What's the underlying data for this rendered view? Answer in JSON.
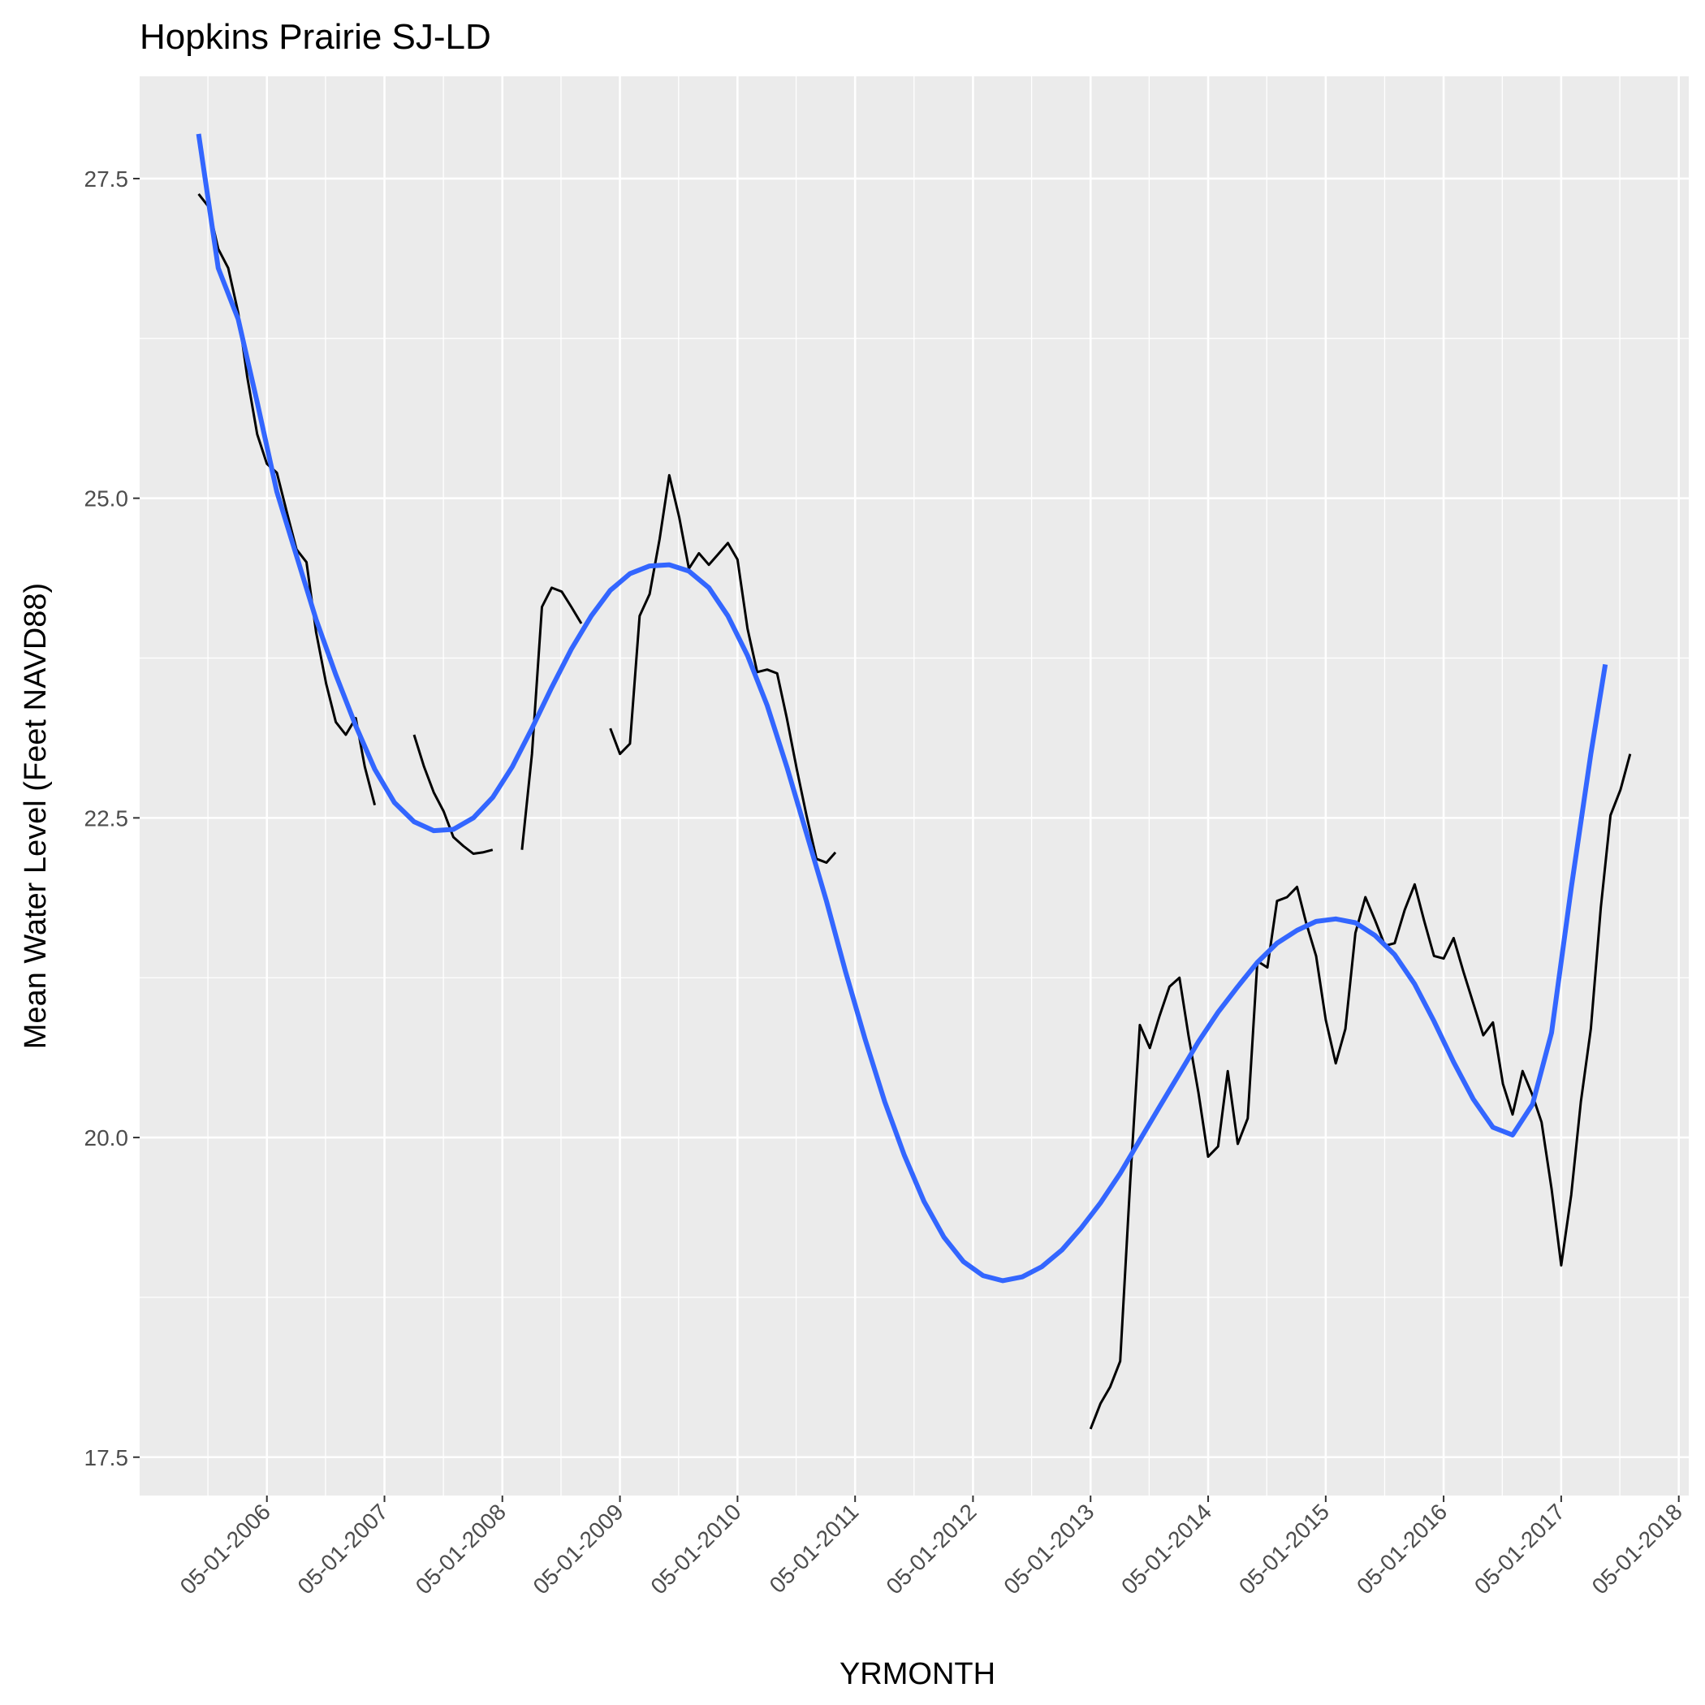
{
  "chart_data": {
    "type": "line",
    "title": "Hopkins Prairie SJ-LD",
    "xlabel": "YRMONTH",
    "ylabel": "Mean Water Level (Feet NAVD88)",
    "x_type": "date",
    "xlim": [
      "2005-04-01",
      "2018-06-01"
    ],
    "ylim": [
      17.2,
      28.3
    ],
    "x_ticks": [
      "2006-05-01",
      "2007-05-01",
      "2008-05-01",
      "2009-05-01",
      "2010-05-01",
      "2011-05-01",
      "2012-05-01",
      "2013-05-01",
      "2014-05-01",
      "2015-05-01",
      "2016-05-01",
      "2017-05-01",
      "2018-05-01"
    ],
    "x_tick_labels": [
      "05-01-2006",
      "05-01-2007",
      "05-01-2008",
      "05-01-2009",
      "05-01-2010",
      "05-01-2011",
      "05-01-2012",
      "05-01-2013",
      "05-01-2014",
      "05-01-2015",
      "05-01-2016",
      "05-01-2017",
      "05-01-2018"
    ],
    "y_ticks": [
      17.5,
      20.0,
      22.5,
      25.0,
      27.5
    ],
    "y_tick_labels": [
      "17.5",
      "20.0",
      "22.5",
      "25.0",
      "27.5"
    ],
    "grid": true,
    "background": "#ebebeb",
    "series": [
      {
        "kind": "line",
        "color": "#000000",
        "segments": [
          [
            [
              "2005-10-01",
              27.38
            ],
            [
              "2005-11-01",
              27.28
            ],
            [
              "2005-12-01",
              26.95
            ],
            [
              "2006-01-01",
              26.8
            ],
            [
              "2006-02-01",
              26.45
            ],
            [
              "2006-03-01",
              25.95
            ],
            [
              "2006-04-01",
              25.5
            ],
            [
              "2006-05-01",
              25.27
            ],
            [
              "2006-06-01",
              25.2
            ],
            [
              "2006-07-01",
              24.9
            ],
            [
              "2006-08-01",
              24.6
            ],
            [
              "2006-09-01",
              24.5
            ],
            [
              "2006-10-01",
              23.95
            ],
            [
              "2006-11-01",
              23.55
            ],
            [
              "2006-12-01",
              23.25
            ],
            [
              "2007-01-01",
              23.15
            ],
            [
              "2007-02-01",
              23.28
            ],
            [
              "2007-03-01",
              22.9
            ],
            [
              "2007-04-01",
              22.6
            ]
          ],
          [
            [
              "2007-08-01",
              23.15
            ],
            [
              "2007-09-01",
              22.9
            ],
            [
              "2007-10-01",
              22.7
            ],
            [
              "2007-11-01",
              22.55
            ],
            [
              "2007-12-01",
              22.35
            ],
            [
              "2008-01-01",
              22.28
            ],
            [
              "2008-02-01",
              22.22
            ],
            [
              "2008-03-01",
              22.23
            ],
            [
              "2008-04-01",
              22.25
            ]
          ],
          [
            [
              "2008-07-01",
              22.25
            ],
            [
              "2008-08-01",
              23.0
            ],
            [
              "2008-09-01",
              24.15
            ],
            [
              "2008-10-01",
              24.3
            ],
            [
              "2008-11-01",
              24.27
            ],
            [
              "2008-12-01",
              24.15
            ],
            [
              "2009-01-01",
              24.02
            ]
          ],
          [
            [
              "2009-04-01",
              23.2
            ],
            [
              "2009-05-01",
              23.0
            ],
            [
              "2009-06-01",
              23.08
            ],
            [
              "2009-07-01",
              24.08
            ],
            [
              "2009-08-01",
              24.25
            ],
            [
              "2009-09-01",
              24.68
            ],
            [
              "2009-10-01",
              25.18
            ],
            [
              "2009-11-01",
              24.85
            ],
            [
              "2009-12-01",
              24.45
            ],
            [
              "2010-01-01",
              24.57
            ],
            [
              "2010-02-01",
              24.48
            ],
            [
              "2010-03-01",
              24.56
            ],
            [
              "2010-04-01",
              24.65
            ],
            [
              "2010-05-01",
              24.52
            ],
            [
              "2010-06-01",
              23.98
            ],
            [
              "2010-07-01",
              23.64
            ],
            [
              "2010-08-01",
              23.66
            ],
            [
              "2010-09-01",
              23.63
            ],
            [
              "2010-10-01",
              23.28
            ],
            [
              "2010-11-01",
              22.88
            ],
            [
              "2010-12-01",
              22.52
            ],
            [
              "2011-01-01",
              22.18
            ],
            [
              "2011-02-01",
              22.15
            ],
            [
              "2011-03-01",
              22.23
            ]
          ],
          [
            [
              "2013-05-01",
              17.72
            ],
            [
              "2013-06-01",
              17.92
            ],
            [
              "2013-07-01",
              18.05
            ],
            [
              "2013-08-01",
              18.25
            ],
            [
              "2013-09-01",
              19.65
            ],
            [
              "2013-10-01",
              20.88
            ],
            [
              "2013-11-01",
              20.7
            ],
            [
              "2013-12-01",
              20.95
            ],
            [
              "2014-01-01",
              21.18
            ],
            [
              "2014-02-01",
              21.25
            ],
            [
              "2014-03-01",
              20.8
            ],
            [
              "2014-04-01",
              20.35
            ],
            [
              "2014-05-01",
              19.85
            ],
            [
              "2014-06-01",
              19.93
            ],
            [
              "2014-07-01",
              20.52
            ],
            [
              "2014-08-01",
              19.95
            ],
            [
              "2014-09-01",
              20.15
            ],
            [
              "2014-10-01",
              21.38
            ],
            [
              "2014-11-01",
              21.33
            ],
            [
              "2014-12-01",
              21.85
            ],
            [
              "2015-01-01",
              21.88
            ],
            [
              "2015-02-01",
              21.96
            ],
            [
              "2015-03-01",
              21.68
            ],
            [
              "2015-04-01",
              21.42
            ],
            [
              "2015-05-01",
              20.92
            ],
            [
              "2015-06-01",
              20.58
            ],
            [
              "2015-07-01",
              20.85
            ],
            [
              "2015-08-01",
              21.6
            ],
            [
              "2015-09-01",
              21.88
            ],
            [
              "2015-10-01",
              21.7
            ],
            [
              "2015-11-01",
              21.5
            ],
            [
              "2015-12-01",
              21.52
            ],
            [
              "2016-01-01",
              21.78
            ],
            [
              "2016-02-01",
              21.98
            ],
            [
              "2016-03-01",
              21.7
            ],
            [
              "2016-04-01",
              21.42
            ],
            [
              "2016-05-01",
              21.4
            ],
            [
              "2016-06-01",
              21.56
            ],
            [
              "2016-07-01",
              21.3
            ],
            [
              "2016-08-01",
              21.05
            ],
            [
              "2016-09-01",
              20.8
            ],
            [
              "2016-10-01",
              20.9
            ],
            [
              "2016-11-01",
              20.42
            ],
            [
              "2016-12-01",
              20.18
            ],
            [
              "2017-01-01",
              20.52
            ],
            [
              "2017-02-01",
              20.33
            ],
            [
              "2017-03-01",
              20.12
            ],
            [
              "2017-04-01",
              19.6
            ],
            [
              "2017-05-01",
              19.0
            ],
            [
              "2017-06-01",
              19.55
            ],
            [
              "2017-07-01",
              20.28
            ],
            [
              "2017-08-01",
              20.85
            ],
            [
              "2017-09-01",
              21.8
            ],
            [
              "2017-10-01",
              22.52
            ],
            [
              "2017-11-01",
              22.72
            ],
            [
              "2017-12-01",
              23.0
            ]
          ]
        ]
      },
      {
        "kind": "smooth",
        "color": "#3366ff",
        "points": [
          [
            "2005-10-01",
            27.85
          ],
          [
            "2005-12-01",
            26.8
          ],
          [
            "2006-02-01",
            26.4
          ],
          [
            "2006-04-01",
            25.75
          ],
          [
            "2006-06-01",
            25.05
          ],
          [
            "2006-08-01",
            24.55
          ],
          [
            "2006-10-01",
            24.05
          ],
          [
            "2006-12-01",
            23.62
          ],
          [
            "2007-02-01",
            23.22
          ],
          [
            "2007-04-01",
            22.88
          ],
          [
            "2007-06-01",
            22.62
          ],
          [
            "2007-08-01",
            22.47
          ],
          [
            "2007-10-01",
            22.4
          ],
          [
            "2007-12-01",
            22.41
          ],
          [
            "2008-02-01",
            22.5
          ],
          [
            "2008-04-01",
            22.66
          ],
          [
            "2008-06-01",
            22.9
          ],
          [
            "2008-08-01",
            23.2
          ],
          [
            "2008-10-01",
            23.52
          ],
          [
            "2008-12-01",
            23.82
          ],
          [
            "2009-02-01",
            24.08
          ],
          [
            "2009-04-01",
            24.28
          ],
          [
            "2009-06-01",
            24.41
          ],
          [
            "2009-08-01",
            24.47
          ],
          [
            "2009-10-01",
            24.48
          ],
          [
            "2009-12-01",
            24.43
          ],
          [
            "2010-02-01",
            24.3
          ],
          [
            "2010-04-01",
            24.08
          ],
          [
            "2010-06-01",
            23.77
          ],
          [
            "2010-08-01",
            23.38
          ],
          [
            "2010-10-01",
            22.9
          ],
          [
            "2010-12-01",
            22.38
          ],
          [
            "2011-02-01",
            21.85
          ],
          [
            "2011-04-01",
            21.3
          ],
          [
            "2011-06-01",
            20.77
          ],
          [
            "2011-08-01",
            20.28
          ],
          [
            "2011-10-01",
            19.86
          ],
          [
            "2011-12-01",
            19.5
          ],
          [
            "2012-02-01",
            19.22
          ],
          [
            "2012-04-01",
            19.03
          ],
          [
            "2012-06-01",
            18.92
          ],
          [
            "2012-08-01",
            18.88
          ],
          [
            "2012-10-01",
            18.91
          ],
          [
            "2012-12-01",
            18.99
          ],
          [
            "2013-02-01",
            19.12
          ],
          [
            "2013-04-01",
            19.29
          ],
          [
            "2013-06-01",
            19.49
          ],
          [
            "2013-08-01",
            19.72
          ],
          [
            "2013-10-01",
            19.98
          ],
          [
            "2013-12-01",
            20.24
          ],
          [
            "2014-02-01",
            20.5
          ],
          [
            "2014-04-01",
            20.75
          ],
          [
            "2014-06-01",
            20.98
          ],
          [
            "2014-08-01",
            21.18
          ],
          [
            "2014-10-01",
            21.37
          ],
          [
            "2014-12-01",
            21.52
          ],
          [
            "2015-02-01",
            21.62
          ],
          [
            "2015-04-01",
            21.69
          ],
          [
            "2015-06-01",
            21.71
          ],
          [
            "2015-08-01",
            21.68
          ],
          [
            "2015-10-01",
            21.58
          ],
          [
            "2015-12-01",
            21.43
          ],
          [
            "2016-02-01",
            21.2
          ],
          [
            "2016-04-01",
            20.91
          ],
          [
            "2016-06-01",
            20.59
          ],
          [
            "2016-08-01",
            20.3
          ],
          [
            "2016-10-01",
            20.08
          ],
          [
            "2016-12-01",
            20.02
          ],
          [
            "2017-02-01",
            20.26
          ],
          [
            "2017-04-01",
            20.82
          ],
          [
            "2017-06-01",
            21.95
          ],
          [
            "2017-08-01",
            23.0
          ],
          [
            "2017-09-15",
            23.7
          ]
        ]
      }
    ]
  }
}
